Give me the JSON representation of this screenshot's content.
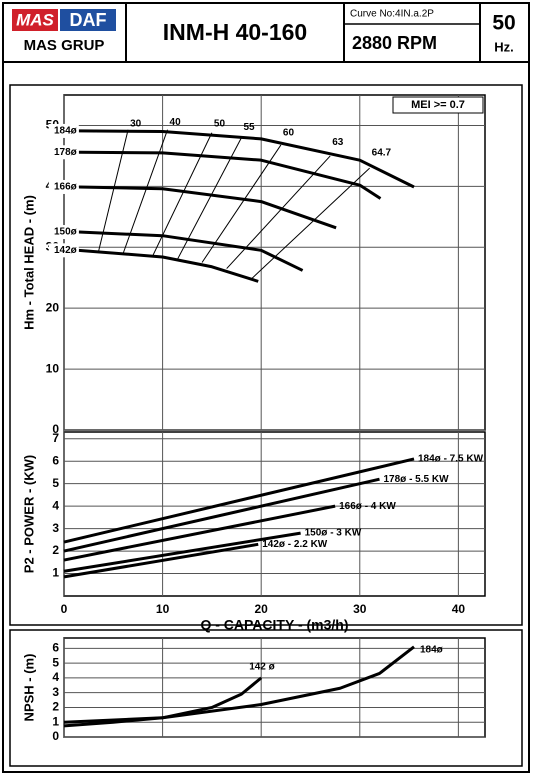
{
  "header": {
    "brand_left": "MAS",
    "brand_right": "DAF",
    "brand_group": "MAS GRUP",
    "model": "INM-H 40-160",
    "curve_no": "Curve No:4IN.a.2P",
    "speed": "2880 RPM",
    "frequency": "50",
    "frequency_unit": "Hz."
  },
  "chart_data": [
    {
      "type": "line",
      "ylabel": "Hm - Total HEAD - (m)",
      "annotation": "MEI >= 0.7",
      "xlim": [
        0,
        42.7
      ],
      "ylim": [
        0,
        55
      ],
      "yticks": [
        0,
        10,
        20,
        30,
        40,
        50
      ],
      "grid": true,
      "series": [
        {
          "name": "184ø",
          "color": "#000000",
          "x": [
            1.5,
            10,
            20,
            30,
            35.5
          ],
          "values": [
            49.1,
            49,
            47.8,
            44.3,
            39.9
          ]
        },
        {
          "name": "178ø",
          "color": "#000000",
          "x": [
            1.5,
            10,
            20,
            30,
            32.1
          ],
          "values": [
            45.6,
            45.5,
            44.3,
            40.2,
            38
          ]
        },
        {
          "name": "166ø",
          "color": "#000000",
          "x": [
            1.5,
            10,
            20,
            27.6
          ],
          "values": [
            39.9,
            39.6,
            37.5,
            33.2
          ]
        },
        {
          "name": "150ø",
          "color": "#000000",
          "x": [
            1.5,
            10,
            20,
            24.2
          ],
          "values": [
            32.5,
            31.9,
            29.5,
            26.2
          ]
        },
        {
          "name": "142ø",
          "color": "#000000",
          "x": [
            1.5,
            10,
            15,
            19.7
          ],
          "values": [
            29.5,
            28.4,
            26.8,
            24.4
          ]
        }
      ],
      "efficiency_lines": [
        {
          "label": "30",
          "x": [
            3.5,
            6.5
          ],
          "values": [
            29.3,
            49.3
          ]
        },
        {
          "label": "40",
          "x": [
            6,
            10.5
          ],
          "values": [
            29,
            49.3
          ]
        },
        {
          "label": "50",
          "x": [
            9,
            15
          ],
          "values": [
            28.6,
            48.8
          ]
        },
        {
          "label": "55",
          "x": [
            11.5,
            18
          ],
          "values": [
            28,
            48
          ]
        },
        {
          "label": "60",
          "x": [
            14,
            22
          ],
          "values": [
            27.5,
            46.8
          ]
        },
        {
          "label": "63",
          "x": [
            16.5,
            27
          ],
          "values": [
            26.5,
            45
          ]
        },
        {
          "label": "64.7",
          "x": [
            19,
            31
          ],
          "values": [
            24.8,
            43
          ]
        }
      ]
    },
    {
      "type": "line",
      "ylabel": "P2 - POWER - (KW)",
      "xlabel": "Q - CAPACITY - (m3/h)",
      "xlim": [
        0,
        42.7
      ],
      "ylim": [
        0,
        7.3
      ],
      "xticks": [
        0,
        10,
        20,
        30,
        40
      ],
      "yticks": [
        1,
        2,
        3,
        4,
        5,
        6,
        7
      ],
      "grid": true,
      "series": [
        {
          "name": "184ø - 7.5 KW",
          "color": "#000000",
          "x": [
            0,
            35.5
          ],
          "values": [
            2.4,
            6.1
          ]
        },
        {
          "name": "178ø - 5.5 KW",
          "color": "#000000",
          "x": [
            0,
            32
          ],
          "values": [
            2.0,
            5.2
          ]
        },
        {
          "name": "166ø - 4 KW",
          "color": "#000000",
          "x": [
            0,
            27.5
          ],
          "values": [
            1.6,
            4.0
          ]
        },
        {
          "name": "150ø - 3 KW",
          "color": "#000000",
          "x": [
            0,
            24
          ],
          "values": [
            1.1,
            2.8
          ]
        },
        {
          "name": "142ø - 2.2 KW",
          "color": "#000000",
          "x": [
            0,
            19.7
          ],
          "values": [
            0.85,
            2.3
          ]
        }
      ]
    },
    {
      "type": "line",
      "ylabel": "NPSH - (m)",
      "xlim": [
        0,
        42.7
      ],
      "ylim": [
        0,
        6.7
      ],
      "yticks": [
        0,
        1,
        2,
        3,
        4,
        5,
        6
      ],
      "grid": true,
      "series": [
        {
          "name": "142 ø",
          "color": "#000000",
          "x": [
            0,
            5,
            10,
            15,
            18,
            20
          ],
          "values": [
            0.75,
            1,
            1.3,
            2,
            2.9,
            4
          ]
        },
        {
          "name": "184ø",
          "color": "#000000",
          "x": [
            0,
            10,
            20,
            28,
            32,
            35.5
          ],
          "values": [
            1,
            1.3,
            2.2,
            3.3,
            4.3,
            6.1
          ]
        }
      ]
    }
  ]
}
